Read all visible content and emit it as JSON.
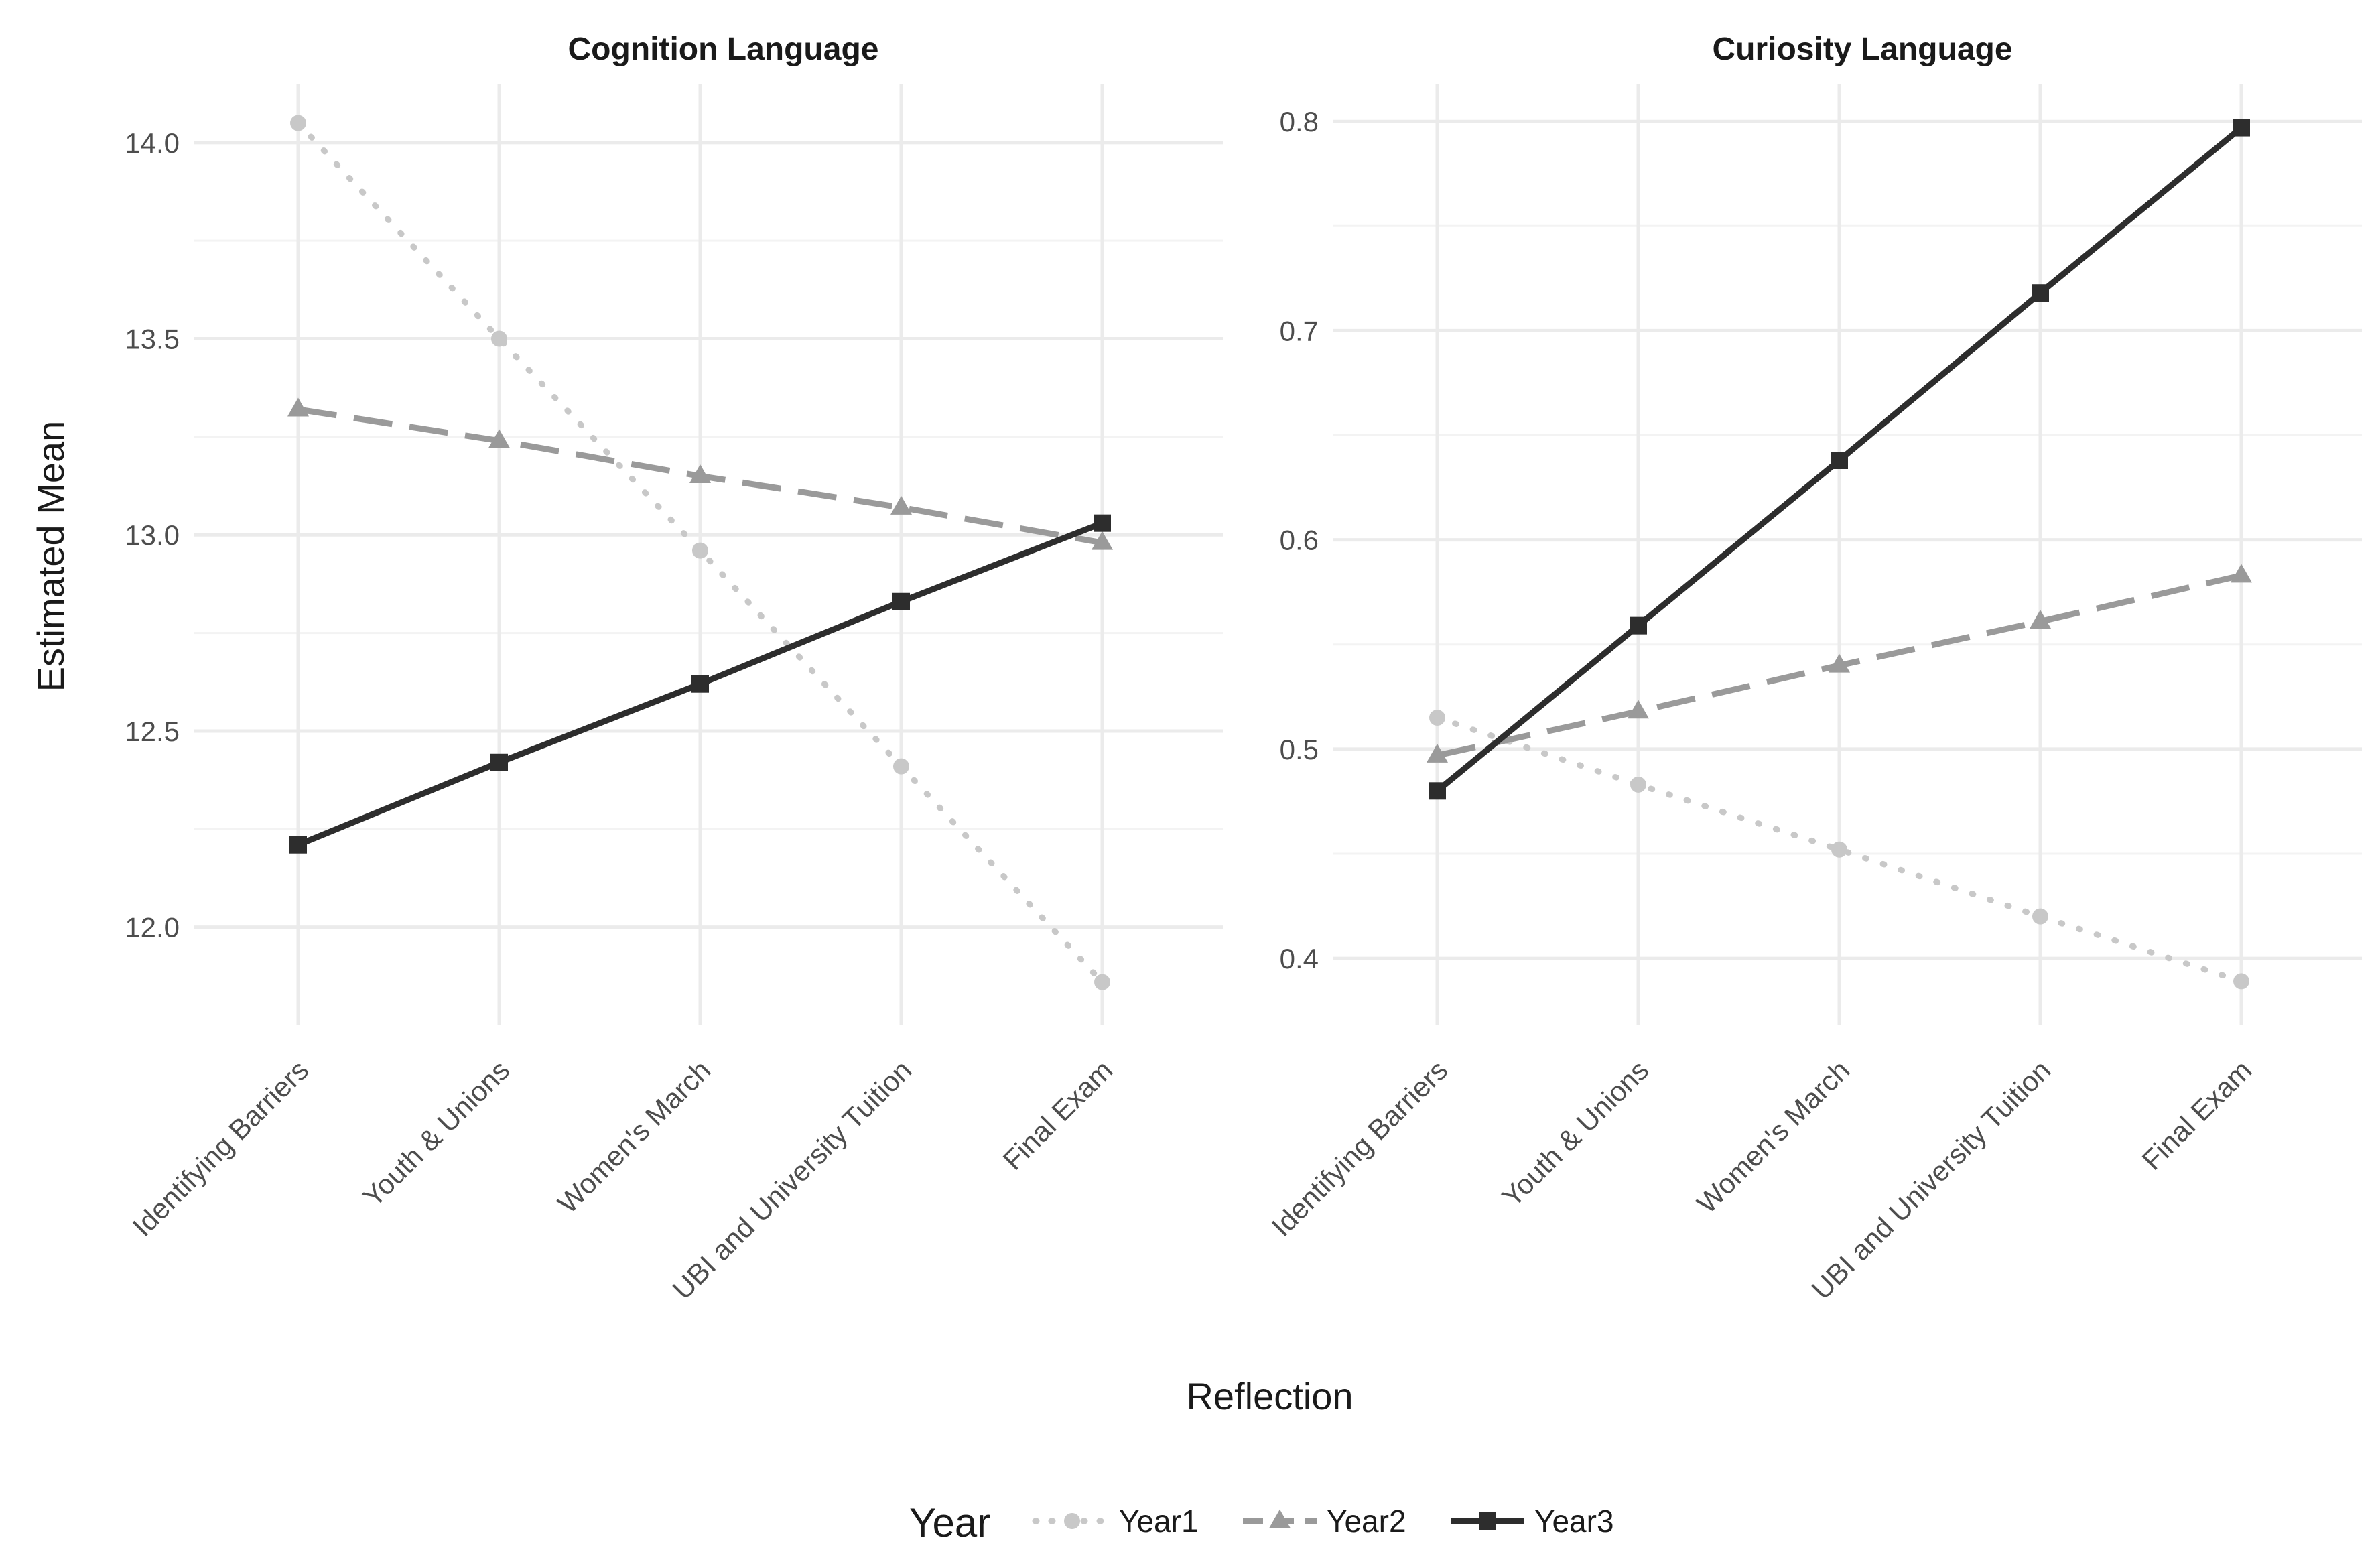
{
  "chart_data": {
    "type": "line",
    "xlabel": "Reflection",
    "ylabel": "Estimated Mean",
    "categories": [
      "Identifying Barriers",
      "Youth & Unions",
      "Women's March",
      "UBI and University Tuition",
      "Final Exam"
    ],
    "legend": {
      "title": "Year",
      "position": "bottom",
      "entries": [
        "Year1",
        "Year2",
        "Year3"
      ]
    },
    "styles": [
      {
        "name": "Year1",
        "color": "#c8c8c8",
        "dash": "dotted",
        "marker": "circle"
      },
      {
        "name": "Year2",
        "color": "#9a9a9a",
        "dash": "dashed",
        "marker": "triangle"
      },
      {
        "name": "Year3",
        "color": "#2d2d2d",
        "dash": "solid",
        "marker": "square"
      }
    ],
    "panels": [
      {
        "title": "Cognition Language",
        "ylim": [
          11.75,
          14.15
        ],
        "yticks": [
          12.0,
          12.5,
          13.0,
          13.5,
          14.0
        ],
        "ytick_labels": [
          "12.0",
          "12.5",
          "13.0",
          "13.5",
          "14.0"
        ],
        "series": [
          {
            "name": "Year1",
            "values": [
              14.05,
              13.5,
              12.96,
              12.41,
              11.86
            ]
          },
          {
            "name": "Year2",
            "values": [
              13.32,
              13.24,
              13.15,
              13.07,
              12.98
            ]
          },
          {
            "name": "Year3",
            "values": [
              12.21,
              12.42,
              12.62,
              12.83,
              13.03
            ]
          }
        ]
      },
      {
        "title": "Curiosity Language",
        "ylim": [
          0.368,
          0.818
        ],
        "yticks": [
          0.4,
          0.5,
          0.6,
          0.7,
          0.8
        ],
        "ytick_labels": [
          "0.4",
          "0.5",
          "0.6",
          "0.7",
          "0.8"
        ],
        "series": [
          {
            "name": "Year1",
            "values": [
              0.515,
              0.483,
              0.452,
              0.42,
              0.389
            ]
          },
          {
            "name": "Year2",
            "values": [
              0.497,
              0.518,
              0.54,
              0.561,
              0.583
            ]
          },
          {
            "name": "Year3",
            "values": [
              0.48,
              0.559,
              0.638,
              0.718,
              0.797
            ]
          }
        ]
      }
    ]
  }
}
